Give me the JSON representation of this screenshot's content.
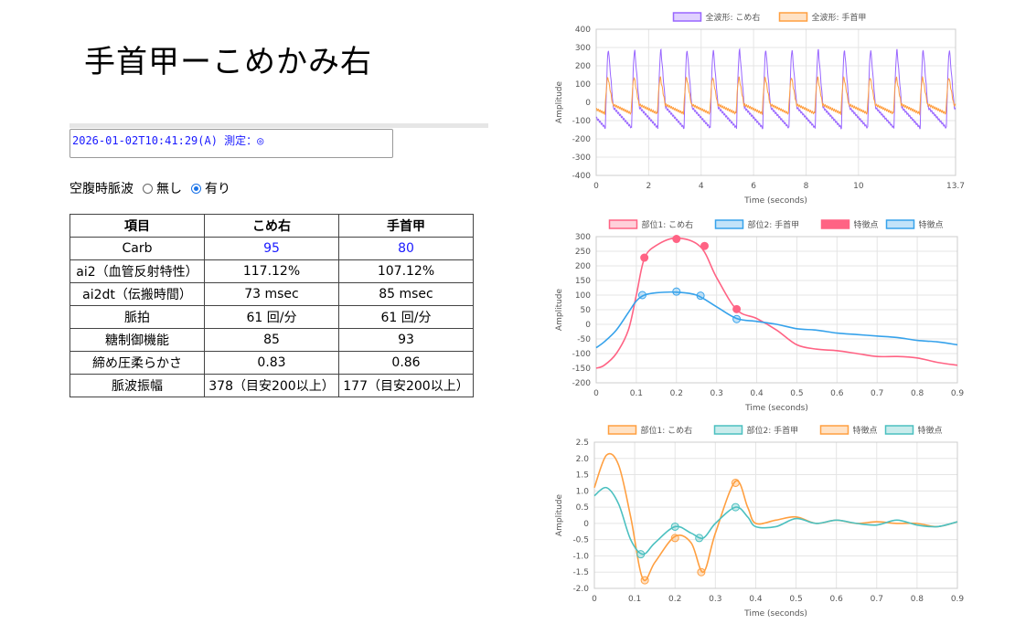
{
  "page": {
    "title": "手首甲ーこめかみ右",
    "log_text": "2026-01-02T10:41:29(A) 測定：◎",
    "fasting_label": "空腹時脈波",
    "fasting_opt_none": "無し",
    "fasting_opt_yes": "有り",
    "fasting_selected": "有り"
  },
  "table": {
    "headers": [
      "項目",
      "こめ右",
      "手首甲"
    ],
    "rows": [
      [
        "Carb",
        "95",
        "80"
      ],
      [
        "ai2（血管反射特性）",
        "117.12%",
        "107.12%"
      ],
      [
        "ai2dt（伝搬時間）",
        "73 msec",
        "85 msec"
      ],
      [
        "脈拍",
        "61 回/分",
        "61 回/分"
      ],
      [
        "糖制御機能",
        "85",
        "93"
      ],
      [
        "締め圧柔らかさ",
        "0.83",
        "0.86"
      ],
      [
        "脈波振幅",
        "378（目安200以上）",
        "177（目安200以上）"
      ]
    ]
  },
  "chart_data": [
    {
      "type": "line",
      "xlabel": "Time (seconds)",
      "ylabel": "Amplitude",
      "xlim": [
        0,
        13.7
      ],
      "ylim": [
        -400,
        400
      ],
      "xticks": [
        "0",
        "2",
        "4",
        "6",
        "8",
        "10",
        "13.7"
      ],
      "yticks": [
        "400",
        "300",
        "200",
        "100",
        "0",
        "-100",
        "-200",
        "-300",
        "-400"
      ],
      "legend": "top",
      "beat_period": 1.0,
      "series": [
        {
          "name": "全波形: こめ右",
          "color": "#9966ff",
          "peak": 285,
          "trough": -140
        },
        {
          "name": "全波形: 手首甲",
          "color": "#ff9f40",
          "peak": 135,
          "trough": -60
        }
      ]
    },
    {
      "type": "line",
      "xlabel": "Time (seconds)",
      "ylabel": "Amplitude",
      "xlim": [
        0,
        0.9
      ],
      "ylim": [
        -200,
        300
      ],
      "xticks": [
        "0",
        "0.1",
        "0.2",
        "0.3",
        "0.4",
        "0.5",
        "0.6",
        "0.7",
        "0.8",
        "0.9"
      ],
      "yticks": [
        "300",
        "250",
        "200",
        "150",
        "100",
        "50",
        "0",
        "-50",
        "-100",
        "-150",
        "-200"
      ],
      "legend": "top",
      "series": [
        {
          "name": "部位1: こめ右",
          "color": "#ff6384",
          "x": [
            0,
            0.02,
            0.05,
            0.08,
            0.1,
            0.12,
            0.15,
            0.2,
            0.26,
            0.3,
            0.35,
            0.4,
            0.45,
            0.5,
            0.55,
            0.6,
            0.65,
            0.7,
            0.75,
            0.8,
            0.85,
            0.9
          ],
          "y": [
            -150,
            -140,
            -100,
            -20,
            100,
            225,
            270,
            295,
            265,
            160,
            50,
            20,
            -20,
            -70,
            -85,
            -90,
            -100,
            -110,
            -110,
            -115,
            -130,
            -140
          ]
        },
        {
          "name": "部位2: 手首甲",
          "color": "#36a2eb",
          "x": [
            0,
            0.02,
            0.05,
            0.08,
            0.1,
            0.12,
            0.15,
            0.2,
            0.25,
            0.3,
            0.35,
            0.4,
            0.45,
            0.5,
            0.55,
            0.6,
            0.65,
            0.7,
            0.75,
            0.8,
            0.85,
            0.9
          ],
          "y": [
            -80,
            -60,
            -20,
            40,
            80,
            100,
            108,
            110,
            100,
            60,
            20,
            10,
            0,
            -15,
            -20,
            -30,
            -35,
            -40,
            -45,
            -55,
            -60,
            -70
          ]
        },
        {
          "name": "特徴点",
          "color": "#ff6384",
          "marker": "filled",
          "x": [
            0.12,
            0.2,
            0.27,
            0.35
          ],
          "y": [
            228,
            292,
            268,
            52
          ]
        },
        {
          "name": "特徴点",
          "color": "#36a2eb",
          "marker": "hollow",
          "x": [
            0.115,
            0.2,
            0.26,
            0.35
          ],
          "y": [
            100,
            112,
            98,
            18
          ]
        }
      ]
    },
    {
      "type": "line",
      "xlabel": "Time (seconds)",
      "ylabel": "Amplitude",
      "xlim": [
        0,
        0.9
      ],
      "ylim": [
        -2.0,
        2.5
      ],
      "xticks": [
        "0",
        "0.1",
        "0.2",
        "0.3",
        "0.4",
        "0.5",
        "0.6",
        "0.7",
        "0.8",
        "0.9"
      ],
      "yticks": [
        "2.5",
        "2.0",
        "1.5",
        "1.0",
        "0.5",
        "0",
        "-0.5",
        "-1.0",
        "-1.5",
        "-2.0"
      ],
      "legend": "top",
      "series": [
        {
          "name": "部位1: こめ右",
          "color": "#ff9f40",
          "x": [
            0,
            0.03,
            0.06,
            0.09,
            0.12,
            0.15,
            0.2,
            0.24,
            0.27,
            0.3,
            0.35,
            0.38,
            0.4,
            0.45,
            0.5,
            0.55,
            0.6,
            0.65,
            0.7,
            0.75,
            0.8,
            0.85,
            0.9
          ],
          "y": [
            1.1,
            2.1,
            1.8,
            0.2,
            -1.7,
            -1.2,
            -0.4,
            -0.6,
            -1.5,
            -0.3,
            1.3,
            0.5,
            0.0,
            0.1,
            0.2,
            0.0,
            0.1,
            0.0,
            0.05,
            0.0,
            0.0,
            -0.1,
            0.05
          ]
        },
        {
          "name": "部位2: 手首甲",
          "color": "#4bc0c0",
          "x": [
            0,
            0.03,
            0.06,
            0.09,
            0.12,
            0.15,
            0.2,
            0.24,
            0.27,
            0.3,
            0.35,
            0.38,
            0.4,
            0.45,
            0.5,
            0.55,
            0.6,
            0.65,
            0.7,
            0.75,
            0.8,
            0.85,
            0.9
          ],
          "y": [
            0.85,
            1.1,
            0.6,
            -0.5,
            -0.95,
            -0.6,
            -0.1,
            -0.3,
            -0.45,
            0.0,
            0.5,
            0.2,
            -0.1,
            -0.1,
            0.15,
            0.0,
            0.1,
            0.0,
            -0.05,
            0.1,
            -0.05,
            -0.1,
            0.05
          ]
        },
        {
          "name": "特徴点",
          "color": "#ff9f40",
          "marker": "hollow",
          "x": [
            0.125,
            0.2,
            0.265,
            0.35
          ],
          "y": [
            -1.75,
            -0.45,
            -1.5,
            1.25
          ]
        },
        {
          "name": "特徴点",
          "color": "#4bc0c0",
          "marker": "hollow",
          "x": [
            0.115,
            0.2,
            0.26,
            0.35
          ],
          "y": [
            -0.95,
            -0.1,
            -0.45,
            0.5
          ]
        }
      ]
    }
  ]
}
